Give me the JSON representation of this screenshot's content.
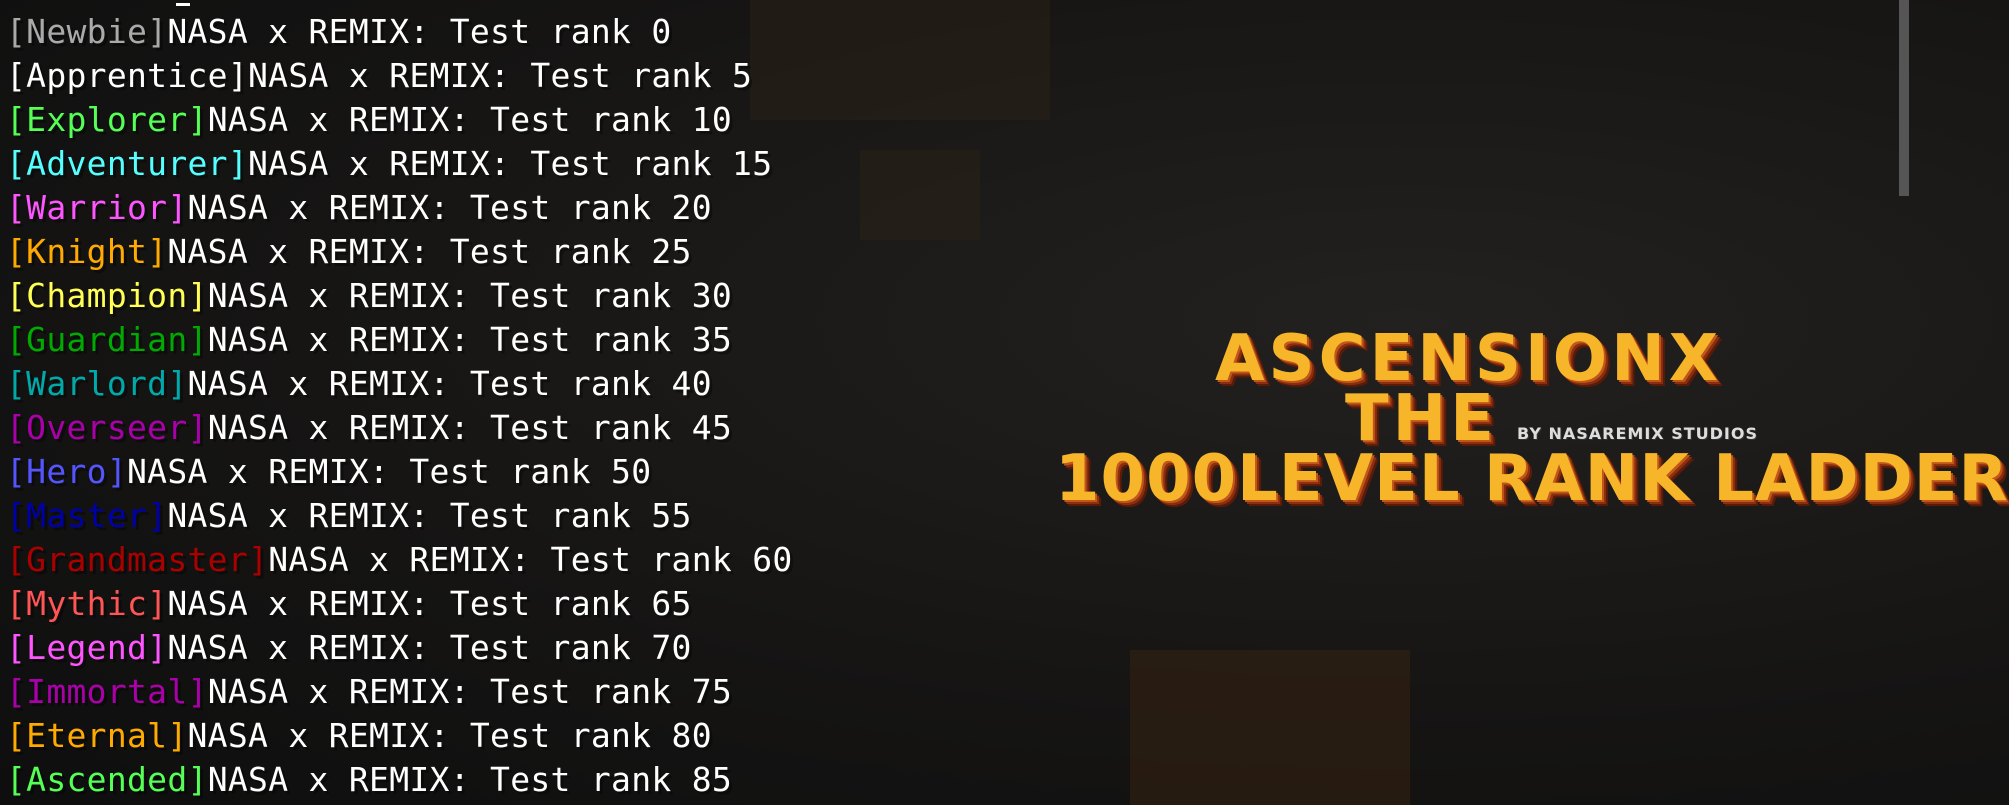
{
  "chat": {
    "message": "NASA x REMIX: Test rank",
    "lines": [
      {
        "rank": "[Newbie]",
        "color": "#AAAAAA",
        "text": "NASA x REMIX: Test rank 0"
      },
      {
        "rank": "[Apprentice]",
        "color": "#FFFFFF",
        "text": "NASA x REMIX: Test rank 5"
      },
      {
        "rank": "[Explorer]",
        "color": "#55FF55",
        "text": "NASA x REMIX: Test rank 10"
      },
      {
        "rank": "[Adventurer]",
        "color": "#55FFFF",
        "text": "NASA x REMIX: Test rank 15"
      },
      {
        "rank": "[Warrior]",
        "color": "#FF55FF",
        "text": "NASA x REMIX: Test rank 20"
      },
      {
        "rank": "[Knight]",
        "color": "#FFAA00",
        "text": "NASA x REMIX: Test rank 25"
      },
      {
        "rank": "[Champion]",
        "color": "#FFFF55",
        "text": "NASA x REMIX: Test rank 30"
      },
      {
        "rank": "[Guardian]",
        "color": "#00AA00",
        "text": "NASA x REMIX: Test rank 35"
      },
      {
        "rank": "[Warlord]",
        "color": "#00AAAA",
        "text": "NASA x REMIX: Test rank 40"
      },
      {
        "rank": "[Overseer]",
        "color": "#AA00AA",
        "text": "NASA x REMIX: Test rank 45"
      },
      {
        "rank": "[Hero]",
        "color": "#5555FF",
        "text": "NASA x REMIX: Test rank 50"
      },
      {
        "rank": "[Master]",
        "color": "#0000AA",
        "text": "NASA x REMIX: Test rank 55"
      },
      {
        "rank": "[Grandmaster]",
        "color": "#AA0000",
        "text": "NASA x REMIX: Test rank 60"
      },
      {
        "rank": "[Mythic]",
        "color": "#FF5555",
        "text": "NASA x REMIX: Test rank 65"
      },
      {
        "rank": "[Legend]",
        "color": "#FF55FF",
        "text": "NASA x REMIX: Test rank 70"
      },
      {
        "rank": "[Immortal]",
        "color": "#AA00AA",
        "text": "NASA x REMIX: Test rank 75"
      },
      {
        "rank": "[Eternal]",
        "color": "#FFAA00",
        "text": "NASA x REMIX: Test rank 80"
      },
      {
        "rank": "[Ascended]",
        "color": "#55FF55",
        "text": "NASA x REMIX: Test rank 85"
      }
    ]
  },
  "logo": {
    "line1": "ASCENSIONX",
    "line2": "THE",
    "line3": "1000LEVEL RANK LADDER",
    "byline": "BY NASAREMIX STUDIOS",
    "color": "#F7B52A"
  }
}
